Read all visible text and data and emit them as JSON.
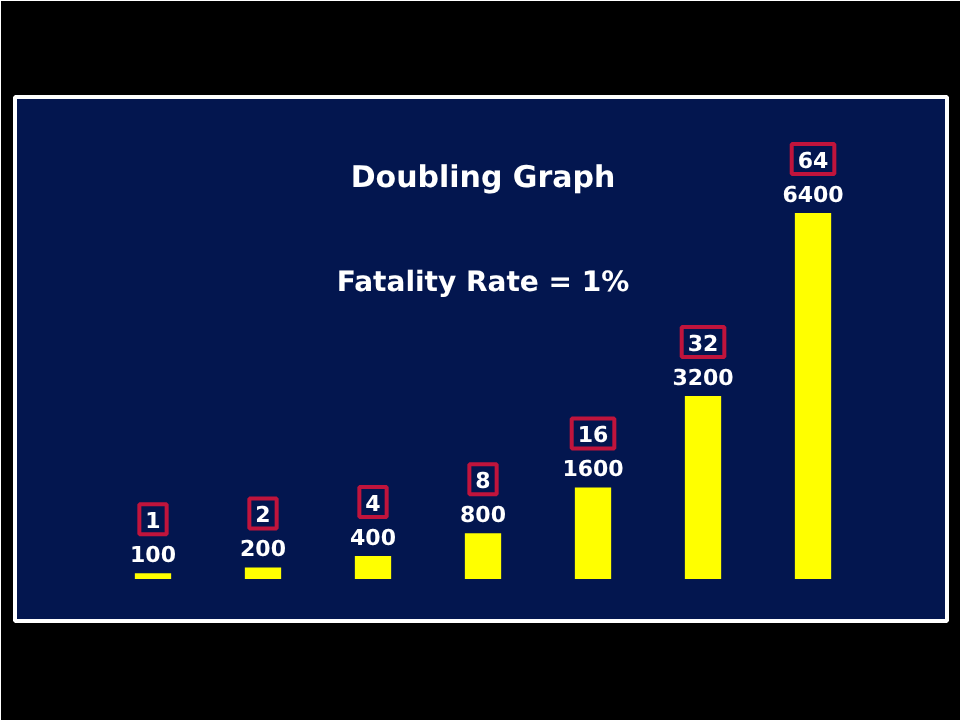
{
  "chart_data": {
    "type": "bar",
    "title": "Doubling Graph",
    "subtitle": "Fatality Rate = 1%",
    "categories": [
      null,
      null,
      null,
      null,
      null,
      null,
      null
    ],
    "values": [
      100,
      200,
      400,
      800,
      1600,
      3200,
      6400
    ],
    "color": "#ffff00",
    "data_labels": true,
    "annotations": [
      "1",
      "2",
      "4",
      "8",
      "16",
      "32",
      "64"
    ],
    "grid": false
  }
}
